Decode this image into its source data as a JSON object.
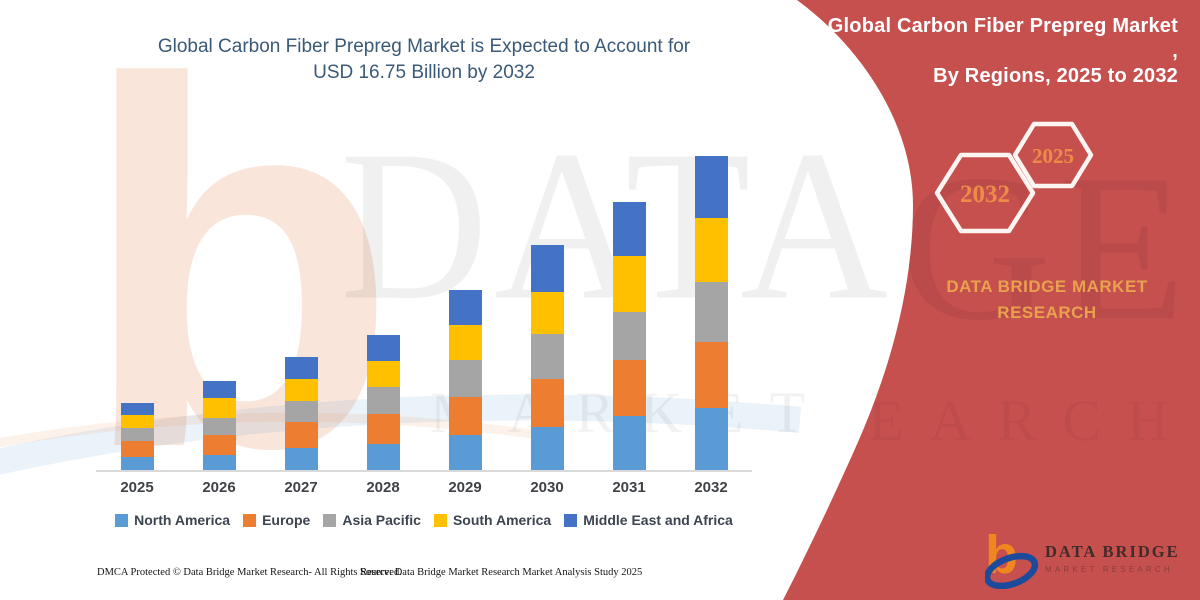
{
  "page": {
    "background": "#FFFFFF"
  },
  "title": {
    "line1": "Global Carbon Fiber Prepreg Market is Expected to Account for",
    "line2": "USD 16.75 Billion by 2032",
    "color": "#3A5A78"
  },
  "chart_data": {
    "type": "bar",
    "stacked": true,
    "title": "Global Carbon Fiber Prepreg Market is Expected to Account for USD 16.75 Billion by 2032",
    "unit": "USD Billion",
    "categories": [
      "2025",
      "2026",
      "2027",
      "2028",
      "2029",
      "2030",
      "2031",
      "2032"
    ],
    "series": [
      {
        "name": "North America",
        "color": "#5B9BD5",
        "values": [
          0.7,
          0.8,
          1.2,
          1.4,
          1.85,
          2.3,
          2.9,
          3.3
        ]
      },
      {
        "name": "Europe",
        "color": "#ED7D31",
        "values": [
          0.85,
          1.05,
          1.35,
          1.6,
          2.05,
          2.55,
          2.95,
          3.55
        ]
      },
      {
        "name": "Asia Pacific",
        "color": "#A5A5A5",
        "values": [
          0.7,
          0.95,
          1.15,
          1.45,
          1.95,
          2.4,
          2.6,
          3.2
        ]
      },
      {
        "name": "South America",
        "color": "#FFC000",
        "values": [
          0.7,
          1.05,
          1.15,
          1.35,
          1.9,
          2.25,
          2.95,
          3.4
        ]
      },
      {
        "name": "Middle East and Africa",
        "color": "#4472C4",
        "values": [
          0.65,
          0.9,
          1.15,
          1.4,
          1.85,
          2.5,
          2.9,
          3.3
        ]
      }
    ],
    "totals": [
      3.6,
      4.75,
      6.0,
      7.2,
      9.6,
      12.0,
      14.3,
      16.75
    ],
    "ylim": [
      0,
      17
    ],
    "grid": false,
    "y_axis_visible": false,
    "legend_position": "bottom"
  },
  "panel": {
    "background": "#C6504E",
    "heading_line1": "Global Carbon Fiber Prepreg Market ,",
    "heading_line2": "By Regions, 2025 to 2032",
    "hexagon_labels": [
      "2032",
      "2025"
    ],
    "number_color": "#ED8C48",
    "brand_line1": "DATA BRIDGE MARKET",
    "brand_line2": "RESEARCH",
    "accent_color": "#E8A24E"
  },
  "logo": {
    "name": "DATA BRIDGE",
    "tagline": "MARKET RESEARCH"
  },
  "footer": {
    "dmca": "DMCA Protected © Data Bridge Market Research- All Rights Reserved.",
    "source": "Source: Data Bridge Market Research Market Analysis Study 2025"
  },
  "watermark": {
    "big_letter": "b",
    "row1": "DATA BRI",
    "row2": "MARKET RE",
    "panel_row1": "DGE",
    "panel_row2": "SEARCH"
  }
}
